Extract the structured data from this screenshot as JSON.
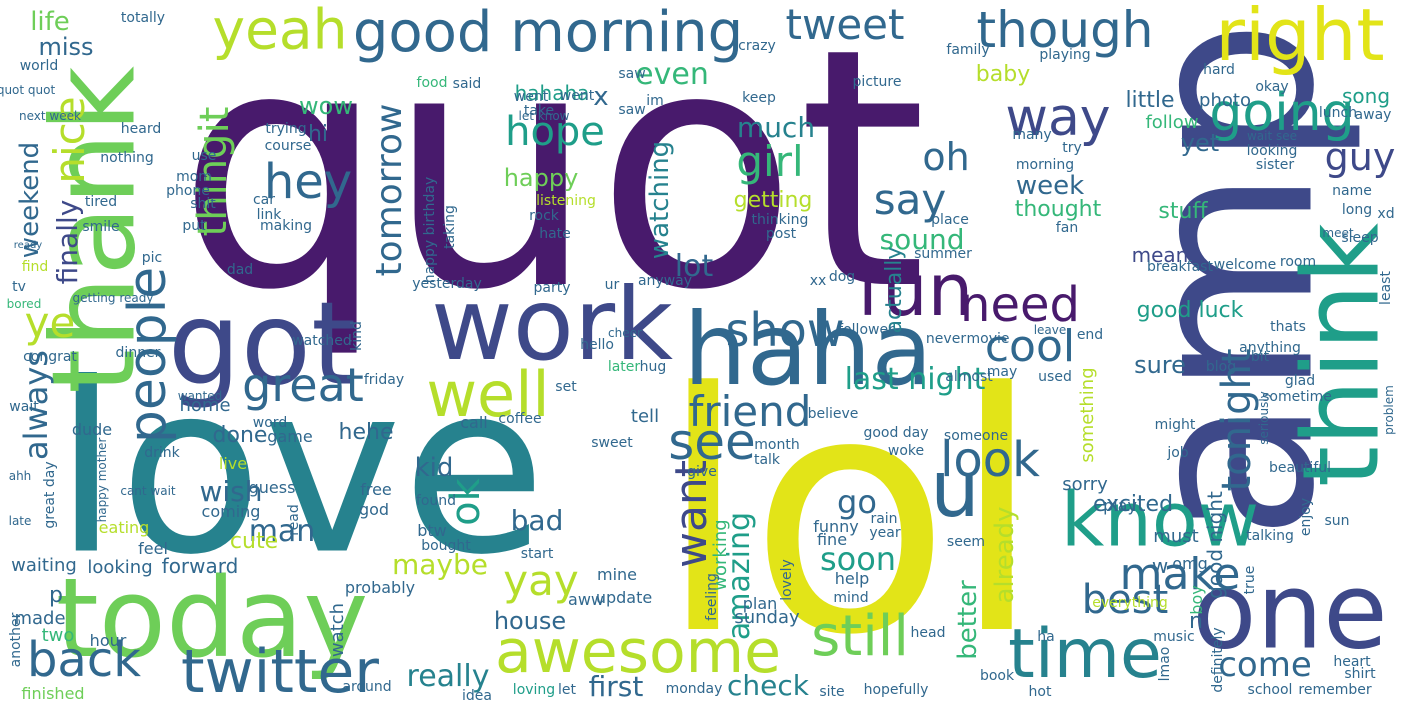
{
  "palette": {
    "dark_purple": "#481a6c",
    "indigo": "#3e4989",
    "blue": "#31688e",
    "teal": "#26828e",
    "green_teal": "#1f9e89",
    "green": "#35b779",
    "light_green": "#6ece58",
    "lime": "#b5de2b",
    "yellow": "#e2e418"
  },
  "words": [
    {
      "text": "quot"
    },
    {
      "text": "lol"
    },
    {
      "text": "love"
    },
    {
      "text": "amp"
    },
    {
      "text": "thank"
    },
    {
      "text": "today"
    },
    {
      "text": "got"
    },
    {
      "text": "work"
    },
    {
      "text": "haha"
    },
    {
      "text": "one"
    },
    {
      "text": "think"
    },
    {
      "text": "know"
    },
    {
      "text": "good morning"
    },
    {
      "text": "right"
    },
    {
      "text": "twitter"
    },
    {
      "text": "awesome"
    },
    {
      "text": "time"
    },
    {
      "text": "well"
    },
    {
      "text": "back"
    },
    {
      "text": "fun"
    },
    {
      "text": "still"
    },
    {
      "text": "u"
    },
    {
      "text": "people"
    },
    {
      "text": "yeah"
    },
    {
      "text": "tweet"
    },
    {
      "text": "though"
    },
    {
      "text": "going"
    },
    {
      "text": "way"
    },
    {
      "text": "need"
    },
    {
      "text": "see"
    },
    {
      "text": "friend"
    },
    {
      "text": "show"
    },
    {
      "text": "great"
    },
    {
      "text": "hey"
    },
    {
      "text": "look"
    },
    {
      "text": "make"
    },
    {
      "text": "cool"
    },
    {
      "text": "tonight"
    },
    {
      "text": "best"
    },
    {
      "text": "come"
    },
    {
      "text": "yay"
    },
    {
      "text": "nice"
    },
    {
      "text": "guy"
    },
    {
      "text": "girl"
    },
    {
      "text": "hope"
    },
    {
      "text": "last night"
    },
    {
      "text": "oh"
    },
    {
      "text": "want"
    },
    {
      "text": "say"
    },
    {
      "text": "ok"
    },
    {
      "text": "tomorrow"
    },
    {
      "text": "ye"
    },
    {
      "text": "it"
    },
    {
      "text": "thing"
    },
    {
      "text": "first"
    },
    {
      "text": "check"
    },
    {
      "text": "really"
    },
    {
      "text": "man"
    },
    {
      "text": "soon"
    },
    {
      "text": "go"
    },
    {
      "text": "much"
    },
    {
      "text": "wish"
    },
    {
      "text": "week"
    },
    {
      "text": "sound"
    },
    {
      "text": "amazing"
    },
    {
      "text": "even"
    },
    {
      "text": "lot"
    },
    {
      "text": "life"
    },
    {
      "text": "miss"
    },
    {
      "text": "weekend"
    },
    {
      "text": "always"
    },
    {
      "text": "finally"
    },
    {
      "text": "maybe"
    },
    {
      "text": "house"
    },
    {
      "text": "bad"
    },
    {
      "text": "kid"
    },
    {
      "text": "already"
    },
    {
      "text": "better"
    },
    {
      "text": "good luck"
    },
    {
      "text": "good night"
    },
    {
      "text": "excited"
    },
    {
      "text": "watching"
    },
    {
      "text": "actually"
    },
    {
      "text": "little"
    },
    {
      "text": "happy"
    },
    {
      "text": "getting"
    },
    {
      "text": "baby"
    },
    {
      "text": "song"
    },
    {
      "text": "hahaha"
    },
    {
      "text": "done"
    },
    {
      "text": "stuff"
    },
    {
      "text": "thought"
    },
    {
      "text": "mean"
    },
    {
      "text": "sure"
    },
    {
      "text": "hehe"
    },
    {
      "text": "wow"
    },
    {
      "text": "hi"
    },
    {
      "text": "x"
    },
    {
      "text": "yet"
    },
    {
      "text": "follow"
    },
    {
      "text": "photo"
    },
    {
      "text": "cute"
    },
    {
      "text": "forward"
    },
    {
      "text": "looking"
    },
    {
      "text": "waiting"
    },
    {
      "text": "made"
    },
    {
      "text": "p"
    },
    {
      "text": "two"
    },
    {
      "text": "hour"
    },
    {
      "text": "home"
    },
    {
      "text": "game"
    },
    {
      "text": "tell"
    },
    {
      "text": "call"
    },
    {
      "text": "something"
    },
    {
      "text": "sorry"
    },
    {
      "text": "play"
    },
    {
      "text": "must"
    },
    {
      "text": "n"
    },
    {
      "text": "w"
    },
    {
      "text": "omg"
    },
    {
      "text": "boy"
    },
    {
      "text": "watch"
    },
    {
      "text": "working"
    },
    {
      "text": "sunday"
    },
    {
      "text": "plan"
    },
    {
      "text": "update"
    },
    {
      "text": "aww"
    },
    {
      "text": "mine"
    },
    {
      "text": "help"
    },
    {
      "text": "mind"
    },
    {
      "text": "fine"
    },
    {
      "text": "funny"
    },
    {
      "text": "probably"
    },
    {
      "text": "around"
    },
    {
      "text": "loving"
    },
    {
      "text": "let"
    },
    {
      "text": "idea"
    },
    {
      "text": "finished"
    },
    {
      "text": "eating"
    },
    {
      "text": "feel"
    },
    {
      "text": "live"
    },
    {
      "text": "coming"
    },
    {
      "text": "guess"
    },
    {
      "text": "read"
    },
    {
      "text": "free"
    },
    {
      "text": "god"
    },
    {
      "text": "found"
    },
    {
      "text": "btw"
    },
    {
      "text": "dude"
    },
    {
      "text": "wait"
    },
    {
      "text": "dinner"
    },
    {
      "text": "hello"
    },
    {
      "text": "later"
    },
    {
      "text": "hug"
    },
    {
      "text": "set"
    },
    {
      "text": "coffee"
    },
    {
      "text": "anyway"
    },
    {
      "text": "ur"
    },
    {
      "text": "party"
    },
    {
      "text": "yesterday"
    },
    {
      "text": "rock"
    },
    {
      "text": "hate"
    },
    {
      "text": "listening"
    },
    {
      "text": "take"
    },
    {
      "text": "saw"
    },
    {
      "text": "went"
    },
    {
      "text": "let know"
    },
    {
      "text": "said"
    },
    {
      "text": "im"
    },
    {
      "text": "trying"
    },
    {
      "text": "course"
    },
    {
      "text": "use"
    },
    {
      "text": "mom"
    },
    {
      "text": "tired"
    },
    {
      "text": "shit"
    },
    {
      "text": "phone"
    },
    {
      "text": "put"
    },
    {
      "text": "link"
    },
    {
      "text": "smile"
    },
    {
      "text": "making"
    },
    {
      "text": "car"
    },
    {
      "text": "pic"
    },
    {
      "text": "getting ready"
    },
    {
      "text": "watched"
    },
    {
      "text": "congrat"
    },
    {
      "text": "heard"
    },
    {
      "text": "nothing"
    },
    {
      "text": "world"
    },
    {
      "text": "quot quot"
    },
    {
      "text": "next week"
    },
    {
      "text": "keep"
    },
    {
      "text": "picture"
    },
    {
      "text": "food"
    },
    {
      "text": "saw"
    },
    {
      "text": "summer"
    },
    {
      "text": "place"
    },
    {
      "text": "thinking"
    },
    {
      "text": "post"
    },
    {
      "text": "never"
    },
    {
      "text": "movie"
    },
    {
      "text": "used"
    },
    {
      "text": "may"
    },
    {
      "text": "almost"
    },
    {
      "text": "friday"
    },
    {
      "text": "end"
    },
    {
      "text": "bit"
    },
    {
      "text": "might"
    },
    {
      "text": "job"
    },
    {
      "text": "blog"
    },
    {
      "text": "glad"
    },
    {
      "text": "anything"
    },
    {
      "text": "sometime"
    },
    {
      "text": "beautiful"
    },
    {
      "text": "thats"
    },
    {
      "text": "welcome"
    },
    {
      "text": "room"
    },
    {
      "text": "breakfast"
    },
    {
      "text": "sleep"
    },
    {
      "text": "name"
    },
    {
      "text": "xd"
    },
    {
      "text": "long"
    },
    {
      "text": "meet"
    },
    {
      "text": "least"
    },
    {
      "text": "fan"
    },
    {
      "text": "try"
    },
    {
      "text": "morning"
    },
    {
      "text": "many"
    },
    {
      "text": "looking"
    },
    {
      "text": "sister"
    },
    {
      "text": "wait see"
    },
    {
      "text": "okay"
    },
    {
      "text": "lunch"
    },
    {
      "text": "away"
    },
    {
      "text": "hard"
    },
    {
      "text": "playing"
    },
    {
      "text": "family"
    },
    {
      "text": "crazy"
    },
    {
      "text": "totally"
    },
    {
      "text": "school"
    },
    {
      "text": "remember"
    },
    {
      "text": "heart"
    },
    {
      "text": "shirt"
    },
    {
      "text": "music"
    },
    {
      "text": "head"
    },
    {
      "text": "hot"
    },
    {
      "text": "book"
    },
    {
      "text": "seem"
    },
    {
      "text": "sun"
    },
    {
      "text": "lmao"
    },
    {
      "text": "monday"
    },
    {
      "text": "site"
    },
    {
      "text": "hopefully"
    },
    {
      "text": "talking"
    },
    {
      "text": "everything"
    },
    {
      "text": "ha"
    },
    {
      "text": "good day"
    },
    {
      "text": "woke"
    },
    {
      "text": "rain"
    },
    {
      "text": "year"
    },
    {
      "text": "kind"
    },
    {
      "text": "talk"
    },
    {
      "text": "month"
    },
    {
      "text": "give"
    },
    {
      "text": "drink"
    },
    {
      "text": "cant wait"
    },
    {
      "text": "word"
    },
    {
      "text": "happy mother"
    },
    {
      "text": "great day"
    },
    {
      "text": "wanted"
    },
    {
      "text": "believe"
    },
    {
      "text": "someone"
    },
    {
      "text": "bought"
    },
    {
      "text": "another"
    },
    {
      "text": "dad"
    },
    {
      "text": "find"
    },
    {
      "text": "tv"
    },
    {
      "text": "ahh"
    },
    {
      "text": "late"
    },
    {
      "text": "bored"
    },
    {
      "text": "dog"
    },
    {
      "text": "xx"
    },
    {
      "text": "follower"
    },
    {
      "text": "went"
    },
    {
      "text": "happy birthday"
    },
    {
      "text": "taking"
    },
    {
      "text": "enjoy"
    },
    {
      "text": "true"
    },
    {
      "text": "seriously"
    },
    {
      "text": "problem"
    },
    {
      "text": "definitely"
    },
    {
      "text": "lovely"
    },
    {
      "text": "feeling"
    },
    {
      "text": "sweet"
    },
    {
      "text": "start"
    },
    {
      "text": "ready"
    },
    {
      "text": "leave"
    },
    {
      "text": "cheer"
    }
  ]
}
